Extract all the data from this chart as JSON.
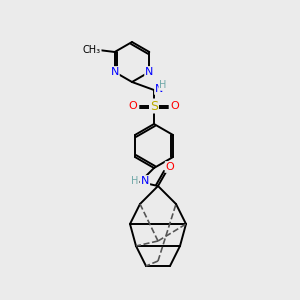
{
  "background_color": "#ebebeb",
  "atom_colors": {
    "N": "#0000FF",
    "O": "#FF0000",
    "S": "#BBAA00",
    "C": "#000000",
    "H": "#6fa8a8"
  },
  "figsize": [
    3.0,
    3.0
  ],
  "dpi": 100
}
